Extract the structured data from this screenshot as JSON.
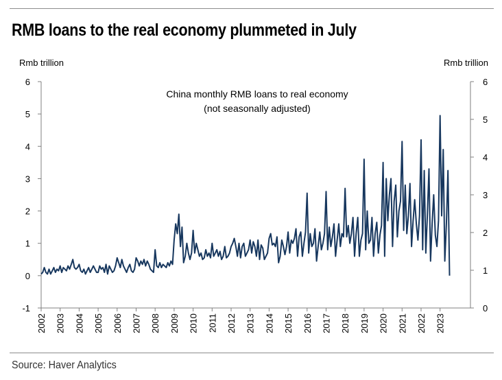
{
  "title": "RMB loans to the real economy plummeted in July",
  "source": "Source: Haver Analytics",
  "colors": {
    "line": "#17375e",
    "axis": "#7f7f7f",
    "rule": "#8c8c8c"
  },
  "chart_data": {
    "type": "line",
    "title": "",
    "annotation": [
      "China monthly RMB loans to real economy",
      "(not seasonally adjusted)"
    ],
    "y_left_label": "Rmb trillion",
    "y_right_label": "Rmb trillion",
    "y_left_lim": [
      -1,
      6
    ],
    "y_left_ticks": [
      "-1",
      "0",
      "1",
      "2",
      "3",
      "4",
      "5",
      "6"
    ],
    "y_right_lim": [
      0,
      6
    ],
    "y_right_ticks": [
      "0",
      "1",
      "2",
      "3",
      "4",
      "5",
      "6"
    ],
    "x_ticks": [
      "2002",
      "2003",
      "2004",
      "2005",
      "2006",
      "2007",
      "2008",
      "2009",
      "2010",
      "2011",
      "2012",
      "2013",
      "2014",
      "2015",
      "2016",
      "2017",
      "2018",
      "2019",
      "2020",
      "2021",
      "2022",
      "2023"
    ],
    "x_start": "2002-01",
    "grid": false,
    "legend": "none",
    "series": [
      {
        "values": [
          0.05,
          0.1,
          0.25,
          0.1,
          0.05,
          0.2,
          0.05,
          0.15,
          0.25,
          0.1,
          0.2,
          0.15,
          0.3,
          0.1,
          0.25,
          0.2,
          0.15,
          0.3,
          0.2,
          0.35,
          0.5,
          0.25,
          0.2,
          0.25,
          0.35,
          0.15,
          0.1,
          0.2,
          0.05,
          0.15,
          0.25,
          0.1,
          0.2,
          0.3,
          0.2,
          0.1,
          0.1,
          0.3,
          0.2,
          0.25,
          0.1,
          0.35,
          0.05,
          0.3,
          0.2,
          0.1,
          0.15,
          0.3,
          0.55,
          0.4,
          0.25,
          0.5,
          0.3,
          0.2,
          0.1,
          0.25,
          0.35,
          0.15,
          0.1,
          0.2,
          0.55,
          0.45,
          0.3,
          0.45,
          0.35,
          0.5,
          0.3,
          0.45,
          0.35,
          0.2,
          0.15,
          0.1,
          0.8,
          0.3,
          0.25,
          0.4,
          0.25,
          0.35,
          0.3,
          0.25,
          0.4,
          0.3,
          0.45,
          0.35,
          1.1,
          1.6,
          1.3,
          1.9,
          0.9,
          1.5,
          0.4,
          0.6,
          1.0,
          0.7,
          0.5,
          0.7,
          1.4,
          0.7,
          1.0,
          0.8,
          0.6,
          0.7,
          0.5,
          0.55,
          0.8,
          0.6,
          0.7,
          0.55,
          1.0,
          0.6,
          0.7,
          0.8,
          0.6,
          0.75,
          0.5,
          0.6,
          0.9,
          0.55,
          0.6,
          0.7,
          0.9,
          1.0,
          1.15,
          0.9,
          0.6,
          1.0,
          0.55,
          0.9,
          1.0,
          0.6,
          0.7,
          0.8,
          1.1,
          0.7,
          1.05,
          0.9,
          0.6,
          1.1,
          0.5,
          0.95,
          0.85,
          0.5,
          0.6,
          0.7,
          1.15,
          1.3,
          0.95,
          1.0,
          0.9,
          1.2,
          0.4,
          0.6,
          1.1,
          0.9,
          0.65,
          0.9,
          1.35,
          0.7,
          1.1,
          1.0,
          1.15,
          1.45,
          0.6,
          1.2,
          1.35,
          0.6,
          1.0,
          1.35,
          2.55,
          0.7,
          1.3,
          0.9,
          1.0,
          1.45,
          0.45,
          0.9,
          1.35,
          0.8,
          1.0,
          1.3,
          2.6,
          0.8,
          1.5,
          0.9,
          1.2,
          1.6,
          0.6,
          1.1,
          1.6,
          0.9,
          1.3,
          1.2,
          2.7,
          1.2,
          1.55,
          1.0,
          1.3,
          1.8,
          0.6,
          1.3,
          1.8,
          0.6,
          1.1,
          1.3,
          3.6,
          0.8,
          2.0,
          1.0,
          1.1,
          1.8,
          0.6,
          1.3,
          1.65,
          0.7,
          1.25,
          1.55,
          3.5,
          0.6,
          3.0,
          1.7,
          2.5,
          3.0,
          0.9,
          2.3,
          2.8,
          1.2,
          2.0,
          2.3,
          4.15,
          1.4,
          2.8,
          1.3,
          1.85,
          2.85,
          0.9,
          1.7,
          2.35,
          1.6,
          1.1,
          1.85,
          4.2,
          0.8,
          3.25,
          0.7,
          1.9,
          3.3,
          0.45,
          1.6,
          2.5,
          1.25,
          0.9,
          1.7,
          4.95,
          1.85,
          3.9,
          0.45,
          1.6,
          3.25,
          0.0
        ]
      }
    ]
  }
}
